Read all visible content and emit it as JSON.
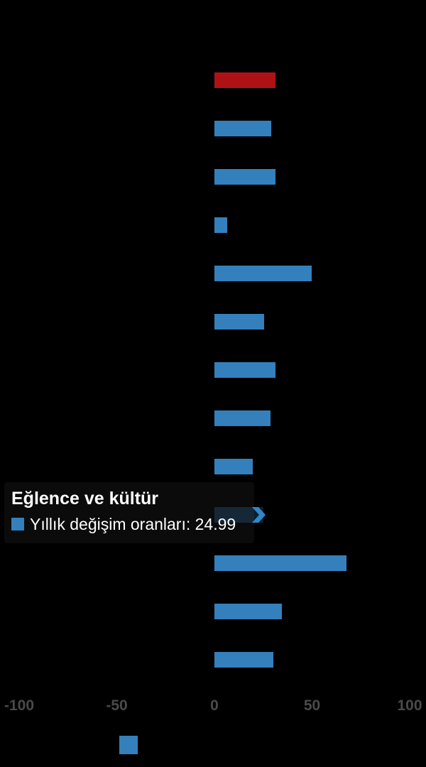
{
  "app": {
    "background": "#000000"
  },
  "tooltip": {
    "title": "Eğlence ve kültür",
    "text": "Yıllık değişim oranları: 24.99",
    "value": "24.99",
    "swatch_color": "#3480bc"
  },
  "legend": {
    "marker_color": "#3480bc"
  },
  "axis": {
    "label_color": "#4a4a4a"
  },
  "chart_data": {
    "type": "bar",
    "orientation": "horizontal",
    "title": "",
    "xlabel": "",
    "ylabel": "",
    "x_ticks": [
      -100,
      -50,
      0,
      50,
      100
    ],
    "xlim": [
      -110,
      108
    ],
    "grid": false,
    "background": "#000000",
    "legend_position": "bottom",
    "series": [
      {
        "name": "Yıllık değişim oranları",
        "color": "#3480bc",
        "points": [
          {
            "category": "",
            "value": 31.3,
            "color": "#ae1217"
          },
          {
            "category": "",
            "value": 29.1
          },
          {
            "category": "",
            "value": 31.3
          },
          {
            "category": "",
            "value": 6.5
          },
          {
            "category": "",
            "value": 49.8
          },
          {
            "category": "",
            "value": 25.5
          },
          {
            "category": "",
            "value": 31.3
          },
          {
            "category": "",
            "value": 28.7
          },
          {
            "category": "",
            "value": 19.6
          },
          {
            "category": "Eğlence ve kültür",
            "value": 24.99,
            "state": "hovered"
          },
          {
            "category": "",
            "value": 67.5
          },
          {
            "category": "",
            "value": 34.5
          },
          {
            "category": "",
            "value": 30.2
          }
        ]
      }
    ],
    "hover": {
      "bar_color": "#0c1f30",
      "arrow_color": "#2e87c8"
    }
  }
}
